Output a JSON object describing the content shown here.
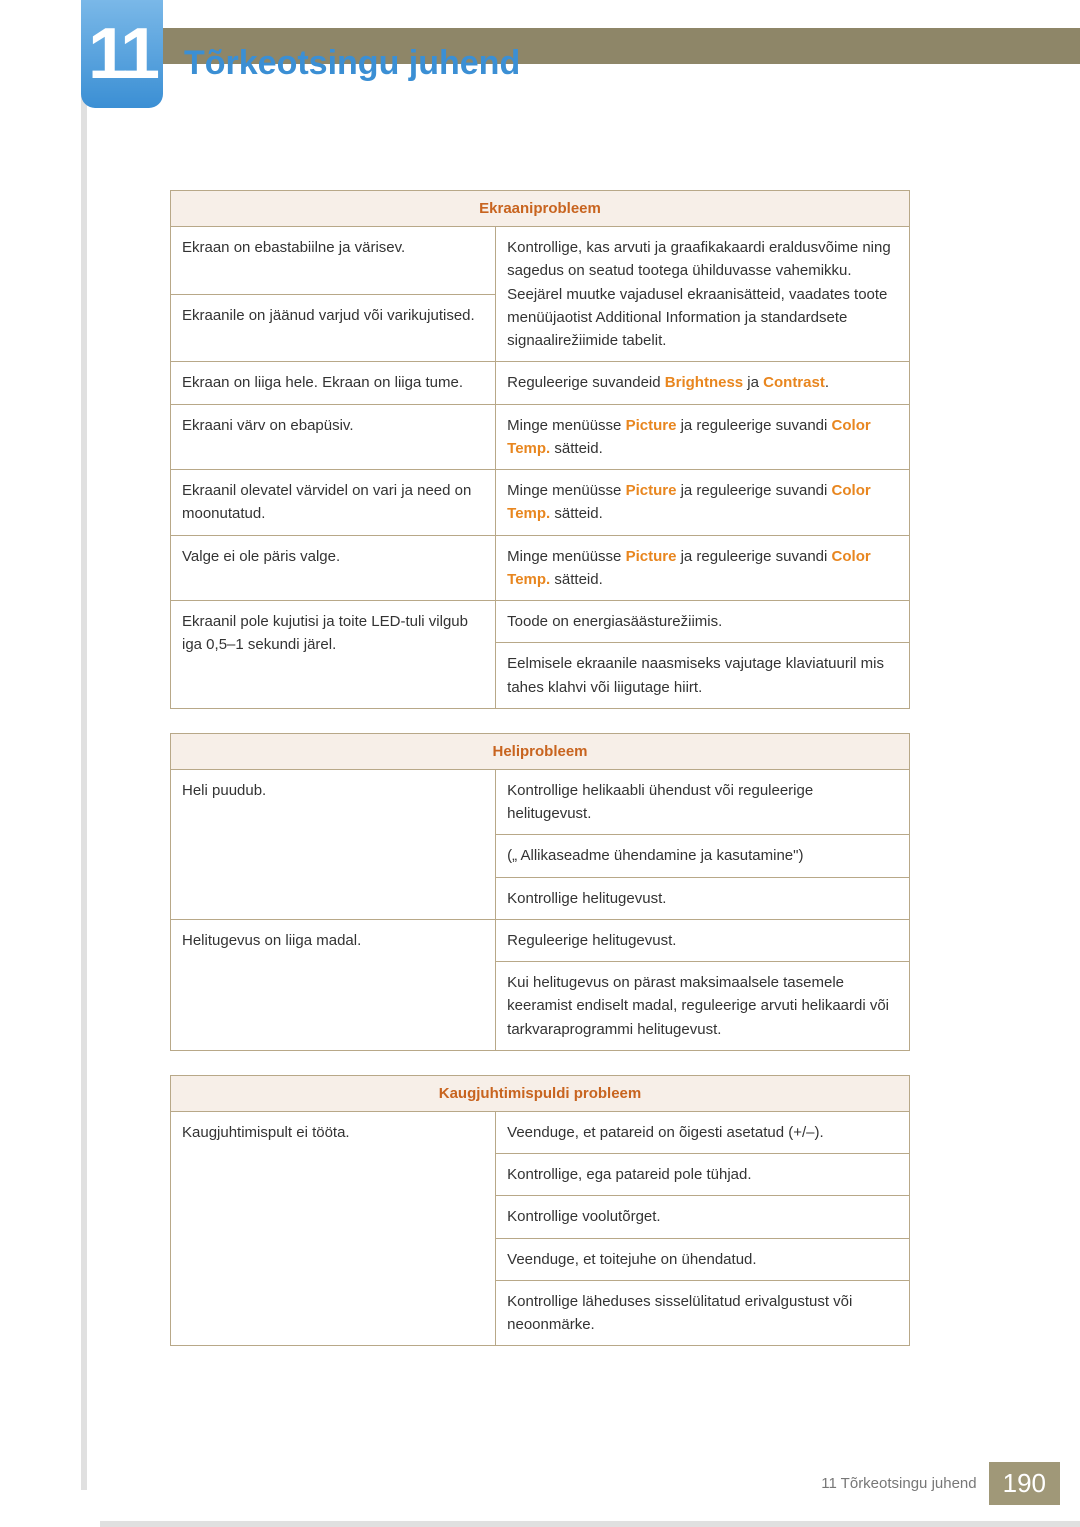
{
  "colors": {
    "accent_blue": "#3b8fd4",
    "accent_orange": "#e8861f",
    "header_orange": "#c8641f",
    "border": "#b8a888",
    "header_bg": "#f7efe8",
    "top_bar": "#8e8668",
    "footer_badge": "#a09878"
  },
  "chapter_number": "11",
  "page_title": "Tõrkeotsingu juhend",
  "tables": [
    {
      "header": "Ekraaniprobleem",
      "rows": [
        {
          "left": [
            "Ekraan on ebastabiilne ja värisev.",
            "Ekraanile on jäänud varjud või varikujutised."
          ],
          "right": [
            "Kontrollige, kas arvuti ja graafikakaardi eraldusvõime ning sagedus on seatud tootega ühilduvasse vahemikku. Seejärel muutke vajadusel ekraanisätteid, vaadates toote menüüjaotist Additional Information ja standardsete signaalirežiimide tabelit."
          ],
          "left_rowspan": [
            1,
            1
          ],
          "right_rowspan": [
            2
          ]
        },
        {
          "left": [
            "Ekraan on liiga hele. Ekraan on liiga tume."
          ],
          "right": [
            "Reguleerige suvandeid {Brightness} ja {Contrast}."
          ]
        },
        {
          "left": [
            "Ekraani värv on ebapüsiv."
          ],
          "right": [
            "Minge menüüsse {Picture} ja reguleerige suvandi {Color Temp.} sätteid."
          ]
        },
        {
          "left": [
            "Ekraanil olevatel värvidel on vari ja need on moonutatud."
          ],
          "right": [
            "Minge menüüsse {Picture} ja reguleerige suvandi {Color Temp.} sätteid."
          ]
        },
        {
          "left": [
            "Valge ei ole päris valge."
          ],
          "right": [
            "Minge menüüsse {Picture} ja reguleerige suvandi {Color Temp.} sätteid."
          ]
        },
        {
          "left": [
            "Ekraanil pole kujutisi ja toite LED-tuli vilgub iga 0,5–1 sekundi järel."
          ],
          "right": [
            "Toode on energiasäästurežiimis.",
            "Eelmisele ekraanile naasmiseks vajutage klaviatuuril mis tahes klahvi või liigutage hiirt."
          ],
          "left_rowspan": [
            2
          ],
          "right_rowspan": [
            1,
            1
          ]
        }
      ]
    },
    {
      "header": "Heliprobleem",
      "rows": [
        {
          "left": [
            "Heli puudub."
          ],
          "right": [
            "Kontrollige helikaabli ühendust või reguleerige helitugevust.",
            "(„ Allikaseadme ühendamine ja kasutamine\")",
            "Kontrollige helitugevust."
          ],
          "left_rowspan": [
            3
          ],
          "right_rowspan": [
            1,
            1,
            1
          ]
        },
        {
          "left": [
            "Helitugevus on liiga madal."
          ],
          "right": [
            "Reguleerige helitugevust.",
            "Kui helitugevus on pärast maksimaalsele tasemele keeramist endiselt madal, reguleerige arvuti helikaardi või tarkvaraprogrammi helitugevust."
          ],
          "left_rowspan": [
            2
          ],
          "right_rowspan": [
            1,
            1
          ]
        }
      ]
    },
    {
      "header": "Kaugjuhtimispuldi probleem",
      "rows": [
        {
          "left": [
            "Kaugjuhtimispult ei tööta."
          ],
          "right": [
            "Veenduge, et patareid on õigesti asetatud (+/–).",
            "Kontrollige, ega patareid pole tühjad.",
            "Kontrollige voolutõrget.",
            "Veenduge, et toitejuhe on ühendatud.",
            "Kontrollige läheduses sisselülitatud erivalgustust või neoonmärke."
          ],
          "left_rowspan": [
            5
          ],
          "right_rowspan": [
            1,
            1,
            1,
            1,
            1
          ]
        }
      ]
    }
  ],
  "footer": {
    "section": "11 Tõrkeotsingu juhend",
    "page_number": "190"
  }
}
